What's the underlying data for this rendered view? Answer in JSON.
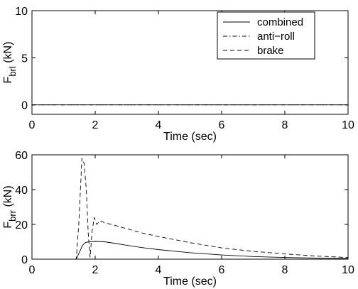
{
  "chart_data": [
    {
      "type": "line",
      "xlabel": "Time (sec)",
      "ylabel_main": "F",
      "ylabel_sub": "brl",
      "ylabel_unit": "(kN)",
      "xlim": [
        0,
        10
      ],
      "ylim": [
        -1,
        10
      ],
      "xticks": [
        0,
        2,
        4,
        6,
        8,
        10
      ],
      "yticks": [
        0,
        5,
        10
      ],
      "grid": false,
      "legend": {
        "position": "top-right",
        "entries": [
          {
            "label": "combined",
            "style": "solid"
          },
          {
            "label": "anti−roll",
            "style": "dashdot"
          },
          {
            "label": "brake",
            "style": "dashed"
          }
        ]
      },
      "series": [
        {
          "style": "solid",
          "x": [
            0,
            10
          ],
          "y": [
            0,
            0
          ]
        },
        {
          "style": "dashdot",
          "x": [
            0,
            10
          ],
          "y": [
            0,
            0
          ]
        },
        {
          "style": "dashed",
          "x": [
            0,
            10
          ],
          "y": [
            0,
            0
          ]
        }
      ]
    },
    {
      "type": "line",
      "xlabel": "Time (sec)",
      "ylabel_main": "F",
      "ylabel_sub": "brr",
      "ylabel_unit": "(kN)",
      "xlim": [
        0,
        10
      ],
      "ylim": [
        0,
        60
      ],
      "xticks": [
        0,
        2,
        4,
        6,
        8,
        10
      ],
      "yticks": [
        0,
        20,
        40,
        60
      ],
      "grid": false,
      "series": [
        {
          "style": "solid",
          "x": [
            0,
            1.4,
            1.5,
            1.6,
            1.7,
            1.8,
            2.0,
            2.3,
            2.6,
            3.0,
            3.5,
            4.0,
            5.0,
            6.0,
            7.0,
            8.0,
            9.0,
            10.0
          ],
          "y": [
            0,
            0,
            4,
            8,
            9.6,
            10,
            10.2,
            10,
            9.2,
            8,
            6.6,
            5.5,
            3.7,
            2.4,
            1.5,
            1.0,
            0.6,
            0.4
          ]
        },
        {
          "style": "dashed",
          "x": [
            0,
            1.4,
            1.48,
            1.58,
            1.65,
            1.72,
            1.78,
            1.84,
            1.9,
            1.97,
            2.05,
            2.15,
            2.3,
            2.6,
            3.0,
            3.5,
            4.0,
            5.0,
            6.0,
            7.0,
            8.0,
            9.0,
            10.0
          ],
          "y": [
            0,
            0,
            20,
            58,
            55,
            40,
            15,
            1,
            16,
            24,
            20,
            22,
            21,
            19.5,
            17.5,
            15,
            13,
            9.5,
            6.5,
            4.5,
            3,
            1.8,
            1.0
          ]
        }
      ]
    }
  ]
}
